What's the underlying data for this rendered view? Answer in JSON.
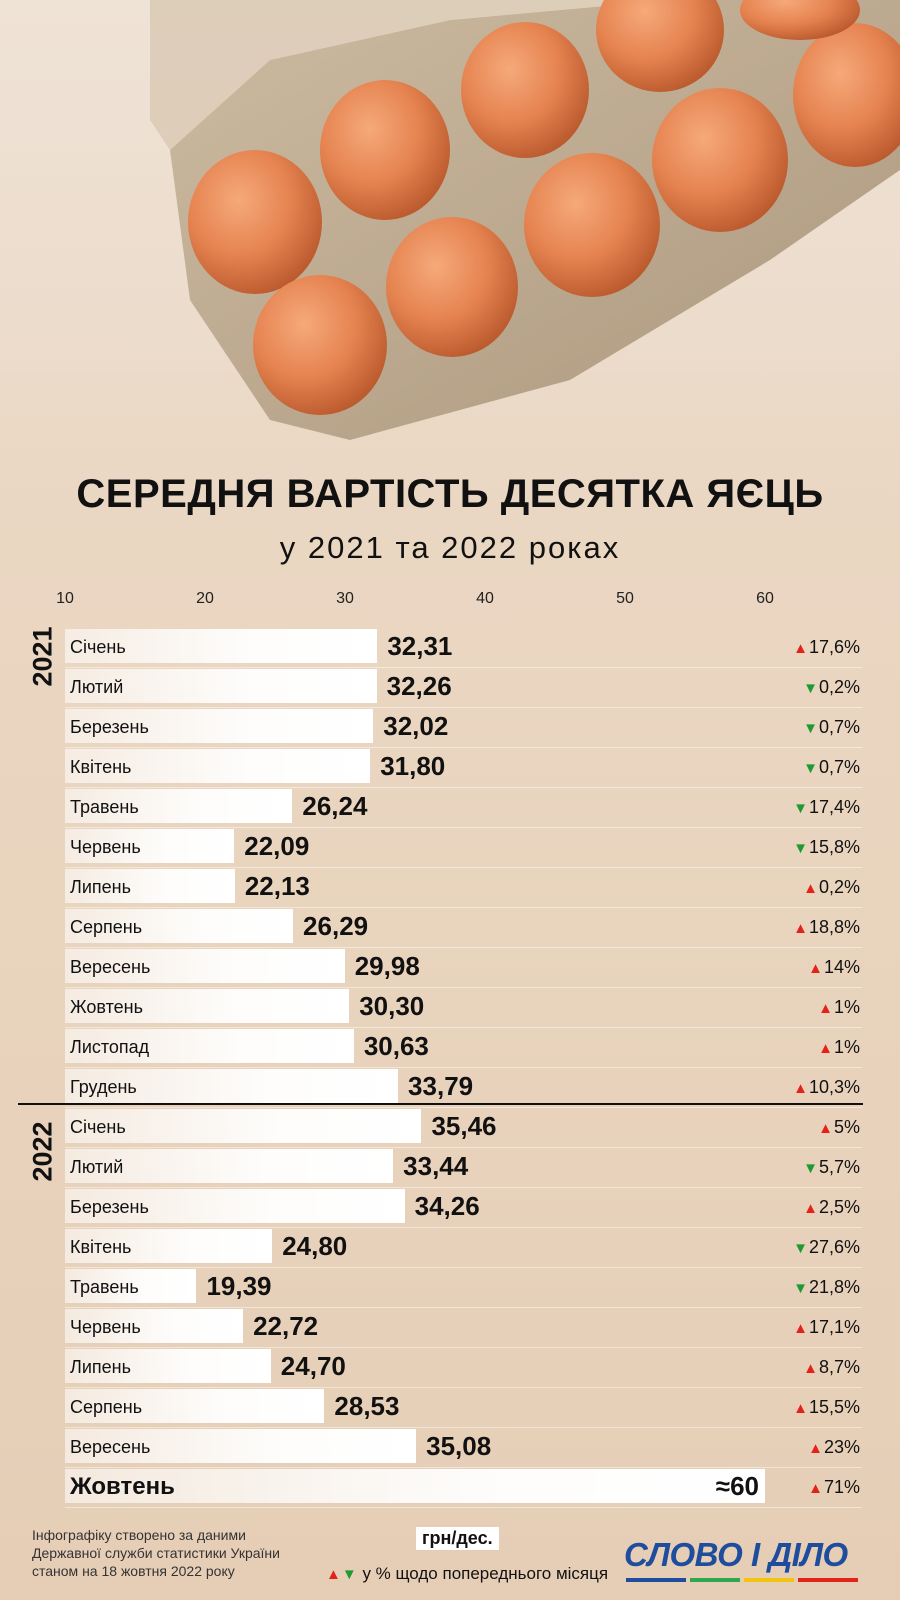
{
  "title": "СЕРЕДНЯ ВАРТІСТЬ ДЕСЯТКА ЯЄЦЬ",
  "subtitle": "у 2021 та 2022 роках",
  "colors": {
    "up": "#e2231a",
    "down": "#1e9a2e",
    "bar": "#ffffff",
    "logo": "#1f4d9e"
  },
  "chart_data": {
    "type": "bar",
    "orientation": "horizontal",
    "title": "СЕРЕДНЯ ВАРТІСТЬ ДЕСЯТКА ЯЄЦЬ",
    "subtitle": "у 2021 та 2022 роках",
    "unit": "грн/дес.",
    "xlim": [
      10,
      60
    ],
    "ticks": [
      "10",
      "20",
      "30",
      "40",
      "50",
      "60"
    ],
    "groups": [
      {
        "year": "2021",
        "rows": [
          {
            "month": "Січень",
            "value": 32.31,
            "value_label": "32,31",
            "change": "17,6%",
            "dir": "up"
          },
          {
            "month": "Лютий",
            "value": 32.26,
            "value_label": "32,26",
            "change": "0,2%",
            "dir": "down"
          },
          {
            "month": "Березень",
            "value": 32.02,
            "value_label": "32,02",
            "change": "0,7%",
            "dir": "down"
          },
          {
            "month": "Квітень",
            "value": 31.8,
            "value_label": "31,80",
            "change": "0,7%",
            "dir": "down"
          },
          {
            "month": "Травень",
            "value": 26.24,
            "value_label": "26,24",
            "change": "17,4%",
            "dir": "down"
          },
          {
            "month": "Червень",
            "value": 22.09,
            "value_label": "22,09",
            "change": "15,8%",
            "dir": "down"
          },
          {
            "month": "Липень",
            "value": 22.13,
            "value_label": "22,13",
            "change": "0,2%",
            "dir": "up"
          },
          {
            "month": "Серпень",
            "value": 26.29,
            "value_label": "26,29",
            "change": "18,8%",
            "dir": "up"
          },
          {
            "month": "Вересень",
            "value": 29.98,
            "value_label": "29,98",
            "change": "14%",
            "dir": "up"
          },
          {
            "month": "Жовтень",
            "value": 30.3,
            "value_label": "30,30",
            "change": "1%",
            "dir": "up"
          },
          {
            "month": "Листопад",
            "value": 30.63,
            "value_label": "30,63",
            "change": "1%",
            "dir": "up"
          },
          {
            "month": "Грудень",
            "value": 33.79,
            "value_label": "33,79",
            "change": "10,3%",
            "dir": "up"
          }
        ]
      },
      {
        "year": "2022",
        "rows": [
          {
            "month": "Січень",
            "value": 35.46,
            "value_label": "35,46",
            "change": "5%",
            "dir": "up"
          },
          {
            "month": "Лютий",
            "value": 33.44,
            "value_label": "33,44",
            "change": "5,7%",
            "dir": "down"
          },
          {
            "month": "Березень",
            "value": 34.26,
            "value_label": "34,26",
            "change": "2,5%",
            "dir": "up"
          },
          {
            "month": "Квітень",
            "value": 24.8,
            "value_label": "24,80",
            "change": "27,6%",
            "dir": "down"
          },
          {
            "month": "Травень",
            "value": 19.39,
            "value_label": "19,39",
            "change": "21,8%",
            "dir": "down"
          },
          {
            "month": "Червень",
            "value": 22.72,
            "value_label": "22,72",
            "change": "17,1%",
            "dir": "up"
          },
          {
            "month": "Липень",
            "value": 24.7,
            "value_label": "24,70",
            "change": "8,7%",
            "dir": "up"
          },
          {
            "month": "Серпень",
            "value": 28.53,
            "value_label": "28,53",
            "change": "15,5%",
            "dir": "up"
          },
          {
            "month": "Вересень",
            "value": 35.08,
            "value_label": "35,08",
            "change": "23%",
            "dir": "up"
          },
          {
            "month": "Жовтень",
            "value": 60,
            "value_label": "≈60",
            "change": "71%",
            "dir": "up",
            "highlight": true
          }
        ]
      }
    ]
  },
  "footer": {
    "source": "Інфографіку створено за даними Державної служби статистики України станом на 18 жовтня 2022 року",
    "unit": "грн/дес.",
    "legend": "у % щодо попереднього місяця",
    "logo": "СЛОВО І ДІЛО"
  }
}
